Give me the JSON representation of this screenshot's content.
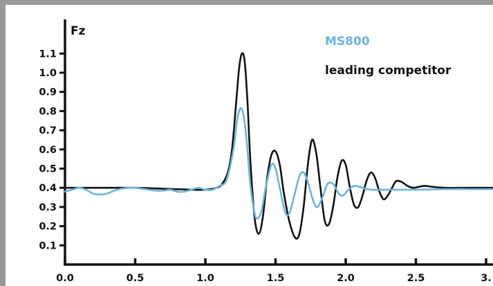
{
  "chart_data": {
    "type": "line",
    "title": "",
    "xlabel": "",
    "ylabel": "Fz",
    "xlim": [
      0.0,
      3.0
    ],
    "ylim": [
      0.0,
      1.1
    ],
    "x_ticks": [
      "0.0",
      "0.5",
      "1.0",
      "1.5",
      "2.0",
      "2.5",
      "3."
    ],
    "y_ticks": [
      "0.1",
      "0.2",
      "0.3",
      "0.4",
      "0.5",
      "0.6",
      "0.7",
      "0.8",
      "0.9",
      "1.0",
      "1.1"
    ],
    "grid": false,
    "legend_position": "top-right",
    "series": [
      {
        "name": "MS800",
        "color": "#6bb3dd",
        "x": [
          0.0,
          0.05,
          0.1,
          0.15,
          0.2,
          0.25,
          0.3,
          0.35,
          0.4,
          0.45,
          0.5,
          0.55,
          0.6,
          0.65,
          0.7,
          0.75,
          0.8,
          0.85,
          0.9,
          0.95,
          1.0,
          1.05,
          1.1,
          1.15,
          1.2,
          1.23,
          1.26,
          1.29,
          1.32,
          1.35,
          1.37,
          1.4,
          1.43,
          1.47,
          1.5,
          1.53,
          1.57,
          1.6,
          1.63,
          1.67,
          1.7,
          1.73,
          1.77,
          1.8,
          1.84,
          1.87,
          1.91,
          1.95,
          1.98,
          2.02,
          2.06,
          2.1,
          2.14,
          2.18,
          2.25,
          2.35,
          2.5,
          2.7,
          2.9,
          3.05
        ],
        "y": [
          0.38,
          0.39,
          0.4,
          0.39,
          0.37,
          0.365,
          0.37,
          0.385,
          0.395,
          0.4,
          0.4,
          0.395,
          0.39,
          0.385,
          0.385,
          0.39,
          0.38,
          0.38,
          0.39,
          0.4,
          0.39,
          0.39,
          0.41,
          0.44,
          0.6,
          0.77,
          0.81,
          0.68,
          0.42,
          0.27,
          0.24,
          0.28,
          0.4,
          0.52,
          0.5,
          0.4,
          0.27,
          0.27,
          0.35,
          0.46,
          0.48,
          0.43,
          0.33,
          0.3,
          0.36,
          0.42,
          0.42,
          0.37,
          0.36,
          0.39,
          0.41,
          0.405,
          0.395,
          0.39,
          0.39,
          0.39,
          0.39,
          0.393,
          0.393,
          0.393
        ]
      },
      {
        "name": "leading competitor",
        "color": "#111111",
        "x": [
          0.0,
          0.1,
          0.3,
          0.5,
          0.7,
          0.9,
          1.0,
          1.08,
          1.12,
          1.16,
          1.19,
          1.22,
          1.24,
          1.26,
          1.28,
          1.3,
          1.32,
          1.35,
          1.38,
          1.41,
          1.44,
          1.47,
          1.5,
          1.53,
          1.56,
          1.6,
          1.64,
          1.67,
          1.7,
          1.73,
          1.76,
          1.79,
          1.82,
          1.85,
          1.88,
          1.91,
          1.94,
          1.97,
          2.0,
          2.03,
          2.06,
          2.09,
          2.12,
          2.15,
          2.18,
          2.21,
          2.24,
          2.27,
          2.3,
          2.33,
          2.36,
          2.4,
          2.44,
          2.48,
          2.52,
          2.56,
          2.62,
          2.7,
          2.8,
          3.05
        ],
        "y": [
          0.4,
          0.4,
          0.4,
          0.4,
          0.395,
          0.39,
          0.39,
          0.4,
          0.42,
          0.48,
          0.6,
          0.85,
          1.02,
          1.1,
          1.06,
          0.85,
          0.55,
          0.25,
          0.16,
          0.25,
          0.45,
          0.57,
          0.59,
          0.52,
          0.37,
          0.22,
          0.14,
          0.16,
          0.3,
          0.52,
          0.65,
          0.58,
          0.4,
          0.23,
          0.21,
          0.3,
          0.45,
          0.54,
          0.52,
          0.4,
          0.31,
          0.3,
          0.36,
          0.44,
          0.48,
          0.45,
          0.38,
          0.34,
          0.36,
          0.4,
          0.435,
          0.43,
          0.41,
          0.4,
          0.405,
          0.41,
          0.405,
          0.4,
          0.4,
          0.4
        ]
      }
    ]
  }
}
